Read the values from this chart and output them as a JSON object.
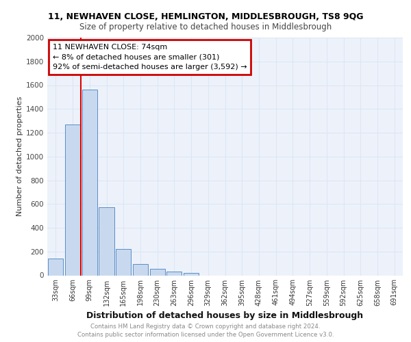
{
  "title1": "11, NEWHAVEN CLOSE, HEMLINGTON, MIDDLESBROUGH, TS8 9QG",
  "title2": "Size of property relative to detached houses in Middlesbrough",
  "xlabel": "Distribution of detached houses by size in Middlesbrough",
  "ylabel": "Number of detached properties",
  "categories": [
    "33sqm",
    "66sqm",
    "99sqm",
    "132sqm",
    "165sqm",
    "198sqm",
    "230sqm",
    "263sqm",
    "296sqm",
    "329sqm",
    "362sqm",
    "395sqm",
    "428sqm",
    "461sqm",
    "494sqm",
    "527sqm",
    "559sqm",
    "592sqm",
    "625sqm",
    "658sqm",
    "691sqm"
  ],
  "values": [
    140,
    1270,
    1560,
    570,
    220,
    95,
    55,
    30,
    20,
    0,
    0,
    0,
    0,
    0,
    0,
    0,
    0,
    0,
    0,
    0,
    0
  ],
  "bar_color": "#c8d9ef",
  "bar_edge_color": "#5b8dc8",
  "ylim": [
    0,
    2000
  ],
  "yticks": [
    0,
    200,
    400,
    600,
    800,
    1000,
    1200,
    1400,
    1600,
    1800,
    2000
  ],
  "red_line_color": "#dd0000",
  "annotation_title": "11 NEWHAVEN CLOSE: 74sqm",
  "annotation_line1": "← 8% of detached houses are smaller (301)",
  "annotation_line2": "92% of semi-detached houses are larger (3,592) →",
  "annotation_box_color": "#cc0000",
  "footer_line1": "Contains HM Land Registry data © Crown copyright and database right 2024.",
  "footer_line2": "Contains public sector information licensed under the Open Government Licence v3.0.",
  "grid_color": "#dce6f5",
  "background_color": "#edf2fa"
}
